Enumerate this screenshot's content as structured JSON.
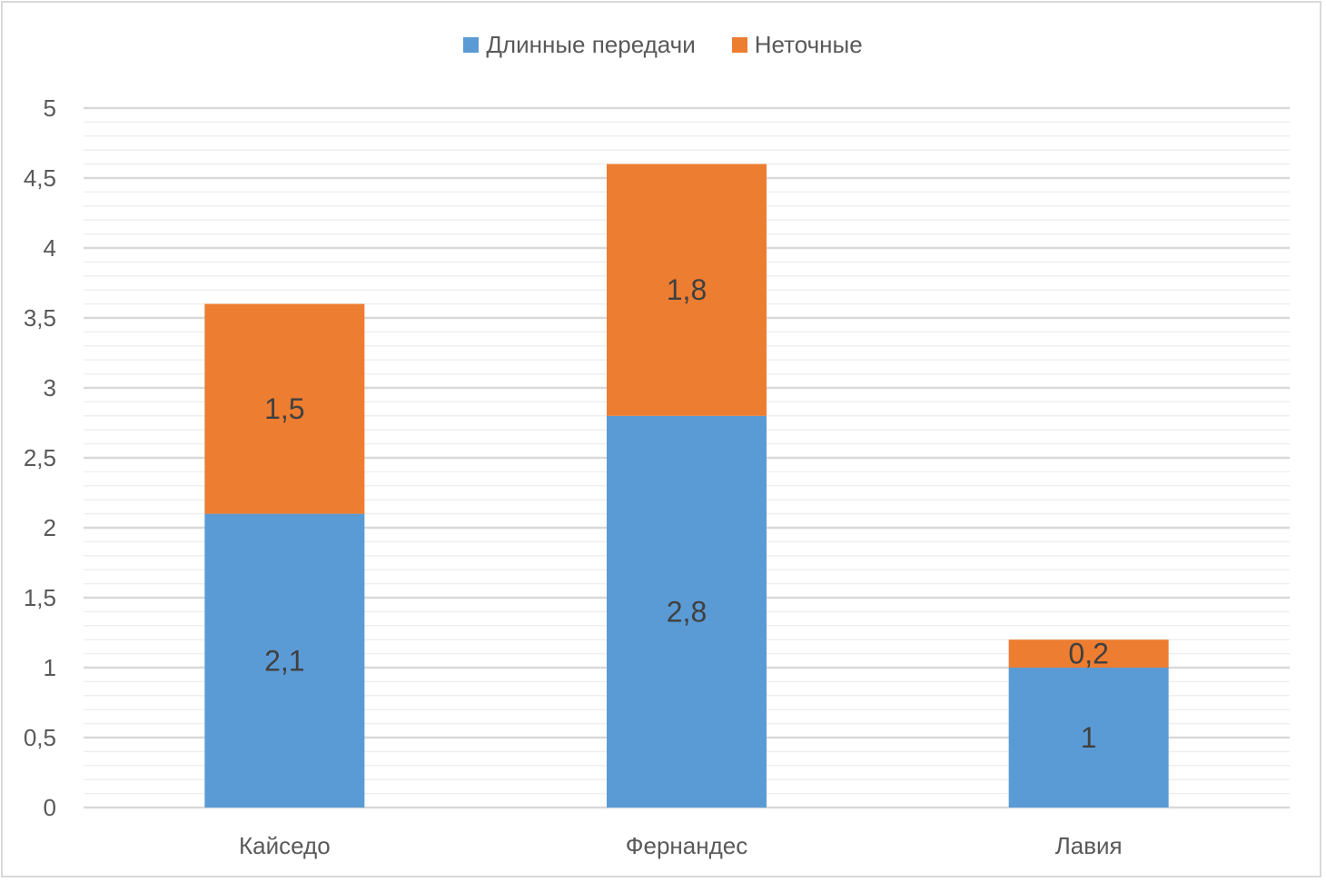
{
  "chart_data": {
    "type": "bar",
    "stacked": true,
    "categories": [
      "Кайседо",
      "Фернандес",
      "Лавия"
    ],
    "series": [
      {
        "name": "Длинные передачи",
        "color": "#5b9bd5",
        "values": [
          2.1,
          2.8,
          1
        ],
        "labels": [
          "2,1",
          "2,8",
          "1"
        ]
      },
      {
        "name": "Неточные",
        "color": "#ed7d31",
        "values": [
          1.5,
          1.8,
          0.2
        ],
        "labels": [
          "1,5",
          "1,8",
          "0,2"
        ]
      }
    ],
    "y_ticks": [
      0,
      0.5,
      1,
      1.5,
      2,
      2.5,
      3,
      3.5,
      4,
      4.5,
      5
    ],
    "y_tick_labels": [
      "0",
      "0,5",
      "1",
      "1,5",
      "2",
      "2,5",
      "3",
      "3,5",
      "4",
      "4,5",
      "5"
    ],
    "ylim": [
      0,
      5
    ],
    "grid": true,
    "legend_position": "top-center"
  }
}
